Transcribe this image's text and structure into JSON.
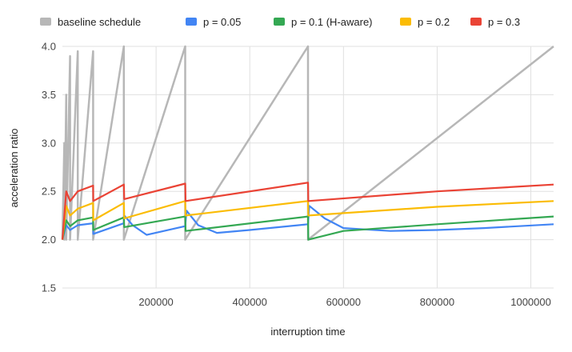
{
  "chart_data": {
    "type": "line",
    "title": "",
    "xlabel": "interruption time",
    "ylabel": "acceleration ratio",
    "xlim": [
      0,
      1048576
    ],
    "ylim": [
      1.5,
      4.0
    ],
    "x_ticks": [
      200000,
      400000,
      600000,
      800000,
      1000000
    ],
    "x_tick_labels": [
      "200000",
      "400000",
      "600000",
      "800000",
      "1000000"
    ],
    "y_ticks": [
      1.5,
      2.0,
      2.5,
      3.0,
      3.5,
      4.0
    ],
    "y_tick_labels": [
      "1.5",
      "2.0",
      "2.5",
      "3.0",
      "3.5",
      "4.0"
    ],
    "grid": true,
    "legend_position": "top",
    "series": [
      {
        "name": "baseline schedule",
        "color": "#b7b7b7",
        "points": [
          [
            0,
            2.0
          ],
          [
            4096,
            3.0
          ],
          [
            4096,
            2.0
          ],
          [
            8192,
            3.5
          ],
          [
            8192,
            2.0
          ],
          [
            16384,
            3.9
          ],
          [
            16384,
            2.0
          ],
          [
            32768,
            3.95
          ],
          [
            32768,
            2.0
          ],
          [
            65536,
            3.95
          ],
          [
            65536,
            2.0
          ],
          [
            131072,
            4.0
          ],
          [
            131072,
            2.0
          ],
          [
            262144,
            4.0
          ],
          [
            262144,
            2.0
          ],
          [
            524288,
            4.0
          ],
          [
            524288,
            2.0
          ],
          [
            1048576,
            4.0
          ]
        ]
      },
      {
        "name": "p = 0.05",
        "color": "#4285f4",
        "points": [
          [
            0,
            2.0
          ],
          [
            8192,
            2.15
          ],
          [
            16384,
            2.1
          ],
          [
            32768,
            2.15
          ],
          [
            65536,
            2.17
          ],
          [
            66000,
            2.06
          ],
          [
            131072,
            2.17
          ],
          [
            132000,
            2.25
          ],
          [
            150000,
            2.15
          ],
          [
            180000,
            2.05
          ],
          [
            262144,
            2.14
          ],
          [
            265000,
            2.3
          ],
          [
            290000,
            2.15
          ],
          [
            330000,
            2.07
          ],
          [
            400000,
            2.1
          ],
          [
            524288,
            2.16
          ],
          [
            527000,
            2.35
          ],
          [
            560000,
            2.22
          ],
          [
            600000,
            2.12
          ],
          [
            700000,
            2.09
          ],
          [
            800000,
            2.1
          ],
          [
            900000,
            2.12
          ],
          [
            1048576,
            2.16
          ]
        ]
      },
      {
        "name": "p = 0.1 (H-aware)",
        "color": "#34a853",
        "points": [
          [
            0,
            2.0
          ],
          [
            8192,
            2.2
          ],
          [
            16384,
            2.14
          ],
          [
            32768,
            2.2
          ],
          [
            65536,
            2.23
          ],
          [
            66000,
            2.1
          ],
          [
            131072,
            2.23
          ],
          [
            132000,
            2.13
          ],
          [
            262144,
            2.24
          ],
          [
            263000,
            2.09
          ],
          [
            524288,
            2.24
          ],
          [
            525000,
            2.0
          ],
          [
            600000,
            2.09
          ],
          [
            800000,
            2.16
          ],
          [
            1048576,
            2.24
          ]
        ]
      },
      {
        "name": "p = 0.2",
        "color": "#fbbc04",
        "points": [
          [
            0,
            2.0
          ],
          [
            8192,
            2.35
          ],
          [
            16384,
            2.25
          ],
          [
            32768,
            2.32
          ],
          [
            65536,
            2.38
          ],
          [
            66000,
            2.2
          ],
          [
            131072,
            2.38
          ],
          [
            132000,
            2.22
          ],
          [
            262144,
            2.4
          ],
          [
            263000,
            2.25
          ],
          [
            524288,
            2.4
          ],
          [
            525000,
            2.25
          ],
          [
            800000,
            2.34
          ],
          [
            1048576,
            2.4
          ]
        ]
      },
      {
        "name": "p = 0.3",
        "color": "#ea4335",
        "points": [
          [
            0,
            2.0
          ],
          [
            8192,
            2.5
          ],
          [
            16384,
            2.4
          ],
          [
            32768,
            2.5
          ],
          [
            65536,
            2.56
          ],
          [
            66000,
            2.4
          ],
          [
            131072,
            2.57
          ],
          [
            132000,
            2.42
          ],
          [
            262144,
            2.58
          ],
          [
            263000,
            2.4
          ],
          [
            524288,
            2.59
          ],
          [
            525000,
            2.4
          ],
          [
            800000,
            2.5
          ],
          [
            1048576,
            2.57
          ]
        ]
      }
    ]
  }
}
